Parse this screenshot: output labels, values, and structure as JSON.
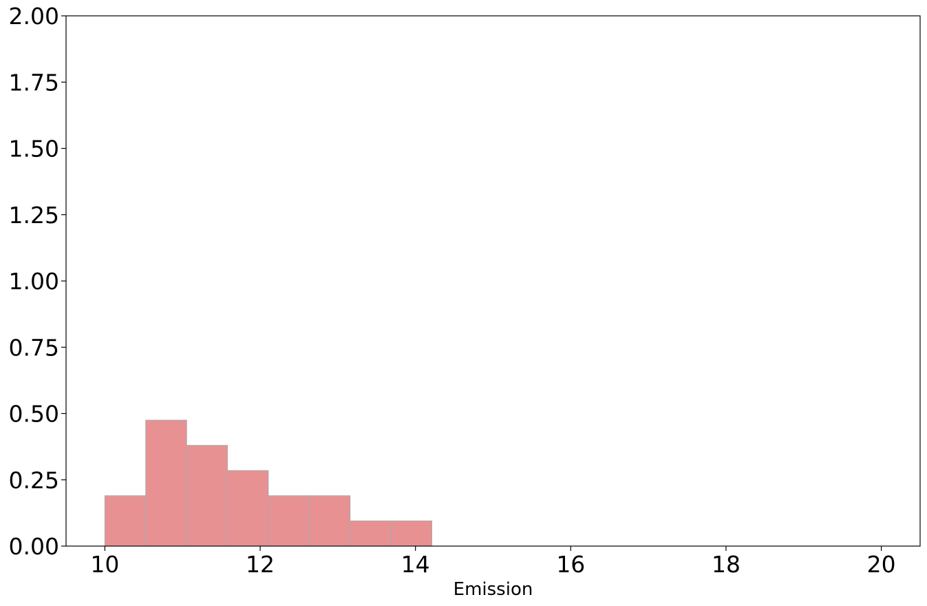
{
  "chart_data": {
    "type": "bar",
    "subtype": "histogram",
    "title": "",
    "xlabel": "Emission",
    "ylabel": "",
    "xlim": [
      9.5,
      20.5
    ],
    "ylim": [
      0,
      2
    ],
    "xticks": [
      10,
      12,
      14,
      16,
      18,
      20
    ],
    "yticks": [
      0.0,
      0.25,
      0.5,
      0.75,
      1.0,
      1.25,
      1.5,
      1.75,
      2.0
    ],
    "xtick_labels": [
      "10",
      "12",
      "14",
      "16",
      "18",
      "20"
    ],
    "ytick_labels": [
      "0.00",
      "0.25",
      "0.50",
      "0.75",
      "1.00",
      "1.25",
      "1.50",
      "1.75",
      "2.00"
    ],
    "bins": [
      {
        "start": 10.0,
        "end": 10.526,
        "value": 0.19
      },
      {
        "start": 10.526,
        "end": 11.053,
        "value": 0.475
      },
      {
        "start": 11.053,
        "end": 11.579,
        "value": 0.38
      },
      {
        "start": 11.579,
        "end": 12.105,
        "value": 0.285
      },
      {
        "start": 12.105,
        "end": 12.632,
        "value": 0.19
      },
      {
        "start": 12.632,
        "end": 13.158,
        "value": 0.19
      },
      {
        "start": 13.158,
        "end": 13.684,
        "value": 0.095
      },
      {
        "start": 13.684,
        "end": 14.211,
        "value": 0.095
      }
    ],
    "grid": false,
    "colors": {
      "bar_fill": "#e89193",
      "bar_edge": "#a9a9a9",
      "axes": "#000000"
    }
  }
}
